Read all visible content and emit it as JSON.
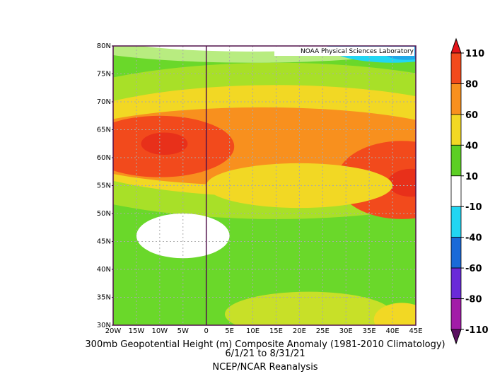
{
  "header": {
    "credit": "NOAA Physical Sciences Laboratory"
  },
  "map": {
    "lat_labels": [
      "80N",
      "75N",
      "70N",
      "65N",
      "60N",
      "55N",
      "50N",
      "45N",
      "40N",
      "35N",
      "30N"
    ],
    "lon_labels": [
      "20W",
      "15W",
      "10W",
      "5W",
      "0",
      "5E",
      "10E",
      "15E",
      "20E",
      "25E",
      "30E",
      "35E",
      "40E",
      "45E"
    ]
  },
  "colorbar": {
    "levels": [
      110,
      80,
      60,
      40,
      10,
      -10,
      -40,
      -60,
      -80,
      -110
    ],
    "colors": [
      "#f24a1c",
      "#f8901e",
      "#f2d824",
      "#5ccf24",
      "#ffffff",
      "#22d6f2",
      "#1a6ad8",
      "#6a2ad8",
      "#a21ca8"
    ],
    "top_color": "#e4141a",
    "bottom_color": "#5a1060"
  },
  "footer": {
    "title": "300mb Geopotential Height (m) Composite Anomaly (1981-2010 Climatology)",
    "dates": "6/1/21  to 8/31/21",
    "source": "NCEP/NCAR Reanalysis"
  }
}
